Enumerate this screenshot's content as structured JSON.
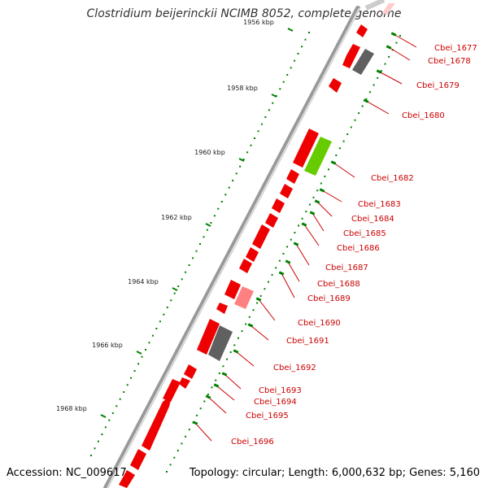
{
  "title": "Clostridium beijerinckii NCIMB 8052, complete genome",
  "accession": "Accession: NC_009617",
  "summary": "Topology: circular; Length: 6,000,632 bp; Genes: 5,160",
  "kbp_ticks": [
    {
      "label": "1956 kbp",
      "kbp": 1956
    },
    {
      "label": "1958 kbp",
      "kbp": 1958
    },
    {
      "label": "1960 kbp",
      "kbp": 1960
    },
    {
      "label": "1962 kbp",
      "kbp": 1962
    },
    {
      "label": "1964 kbp",
      "kbp": 1964
    },
    {
      "label": "1966 kbp",
      "kbp": 1966
    },
    {
      "label": "1968 kbp",
      "kbp": 1968
    }
  ],
  "gene_labels": [
    "Cbei_1677",
    "Cbei_1678",
    "Cbei_1679",
    "Cbei_1680",
    "Cbei_1682",
    "Cbei_1683",
    "Cbei_1684",
    "Cbei_1685",
    "Cbei_1686",
    "Cbei_1687",
    "Cbei_1688",
    "Cbei_1689",
    "Cbei_1690",
    "Cbei_1691",
    "Cbei_1692",
    "Cbei_1693",
    "Cbei_1694",
    "Cbei_1695",
    "Cbei_1696"
  ],
  "colors": {
    "gene_red": "#ee0000",
    "gene_pink": "#ff8080",
    "gene_gray": "#606060",
    "gene_green": "#66cc00",
    "backbone": "#999999",
    "tick_green": "#008000",
    "label_red": "#cc0000"
  }
}
